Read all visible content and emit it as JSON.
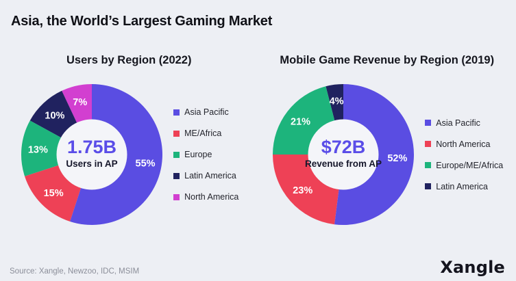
{
  "main_title": "Asia, the World’s Largest Gaming Market",
  "source": "Source: Xangle, Newzoo, IDC, MSIM",
  "logo_text": "Xangle",
  "theme": {
    "background": "#EDEFF4",
    "title_color": "#0F1016",
    "heading_color": "#15161E",
    "accent_purple": "#5A4DE8",
    "hole_color": "#F4F5F9",
    "center_label_color": "#15162A",
    "slice_label_color": "#FFFFFF",
    "legend_text_color": "#23242C",
    "source_color": "#8B8E99",
    "logo_color": "#14141E"
  },
  "chart_data": [
    {
      "type": "pie",
      "variant": "donut",
      "title": "Users by Region (2022)",
      "center_value": "1.75B",
      "center_label": "Users in AP",
      "labels": [
        "Asia Pacific",
        "ME/Africa",
        "Europe",
        "Latin America",
        "North America"
      ],
      "values_pct": [
        55,
        15,
        13,
        10,
        7
      ],
      "colors": [
        "#5A4DE2",
        "#EE4156",
        "#1DB47C",
        "#20225F",
        "#D23FD0"
      ],
      "start_angle_deg": 0,
      "direction": "clockwise",
      "slice_label_format": "{pct}%",
      "legend_position": "right"
    },
    {
      "type": "pie",
      "variant": "donut",
      "title": "Mobile Game Revenue by Region (2019)",
      "center_value": "$72B",
      "center_label": "Revenue from AP",
      "labels": [
        "Asia Pacific",
        "North America",
        "Europe/ME/Africa",
        "Latin America"
      ],
      "values_pct": [
        52,
        23,
        21,
        4
      ],
      "colors": [
        "#5A4DE2",
        "#EE4156",
        "#1DB47C",
        "#20225F"
      ],
      "start_angle_deg": 0,
      "direction": "clockwise",
      "slice_label_format": "{pct}%",
      "legend_position": "right"
    }
  ]
}
